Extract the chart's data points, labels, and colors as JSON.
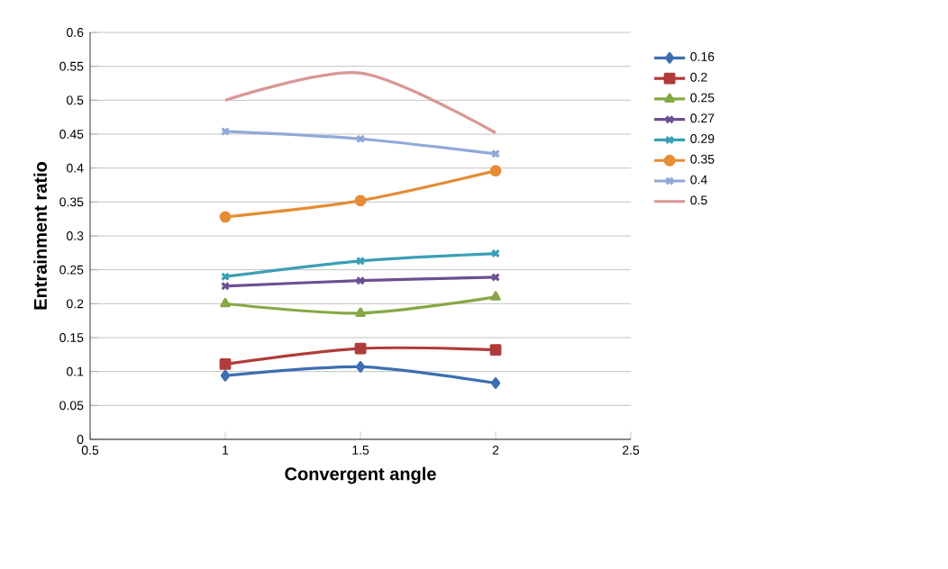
{
  "chart_data": {
    "type": "line",
    "xlabel": "Convergent angle",
    "ylabel": "Entrainment ratio",
    "x": [
      1,
      1.5,
      2
    ],
    "xlim": [
      0.5,
      2.5
    ],
    "xticks": [
      0.5,
      1,
      1.5,
      2,
      2.5
    ],
    "ylim": [
      0,
      0.6
    ],
    "yticks": [
      0,
      0.05,
      0.1,
      0.15,
      0.2,
      0.25,
      0.3,
      0.35,
      0.4,
      0.45,
      0.5,
      0.55,
      0.6
    ],
    "grid": "y",
    "legend": "right",
    "series": [
      {
        "name": "0.16",
        "color": "#3c6fb0",
        "marker": "diamond",
        "values": [
          0.094,
          0.107,
          0.083
        ]
      },
      {
        "name": "0.2",
        "color": "#b03c3a",
        "marker": "square",
        "values": [
          0.111,
          0.134,
          0.132
        ]
      },
      {
        "name": "0.25",
        "color": "#86a844",
        "marker": "triangle",
        "values": [
          0.2,
          0.186,
          0.21
        ]
      },
      {
        "name": "0.27",
        "color": "#6c4f92",
        "marker": "cross",
        "values": [
          0.226,
          0.234,
          0.239
        ]
      },
      {
        "name": "0.29",
        "color": "#3a9fb5",
        "marker": "cross",
        "values": [
          0.24,
          0.263,
          0.274
        ]
      },
      {
        "name": "0.35",
        "color": "#e58c35",
        "marker": "circle",
        "values": [
          0.328,
          0.352,
          0.396
        ]
      },
      {
        "name": "0.4",
        "color": "#8fa9d8",
        "marker": "cross",
        "values": [
          0.454,
          0.443,
          0.421
        ]
      },
      {
        "name": "0.5",
        "color": "#d99694",
        "marker": "none",
        "values": [
          0.5,
          0.54,
          0.452
        ]
      }
    ]
  }
}
